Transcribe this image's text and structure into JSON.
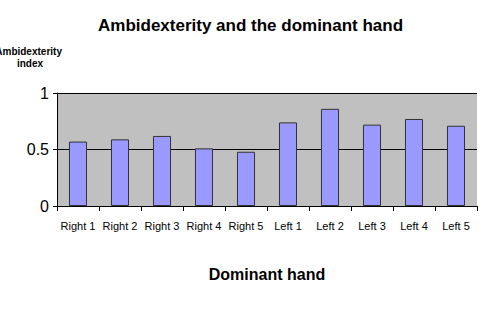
{
  "chart_data": {
    "type": "bar",
    "title": "Ambidexterity and the dominant hand",
    "ylabel": "Ambidexterity index",
    "xlabel": "Dominant hand",
    "categories": [
      "Right 1",
      "Right 2",
      "Right 3",
      "Right 4",
      "Right 5",
      "Left 1",
      "Left 2",
      "Left 3",
      "Left 4",
      "Left 5"
    ],
    "values": [
      0.57,
      0.59,
      0.62,
      0.51,
      0.48,
      0.74,
      0.86,
      0.72,
      0.77,
      0.71
    ],
    "color": "#9999ff",
    "ylim": [
      0,
      1
    ],
    "yticks": [
      0,
      0.5,
      1
    ],
    "grid": true
  }
}
